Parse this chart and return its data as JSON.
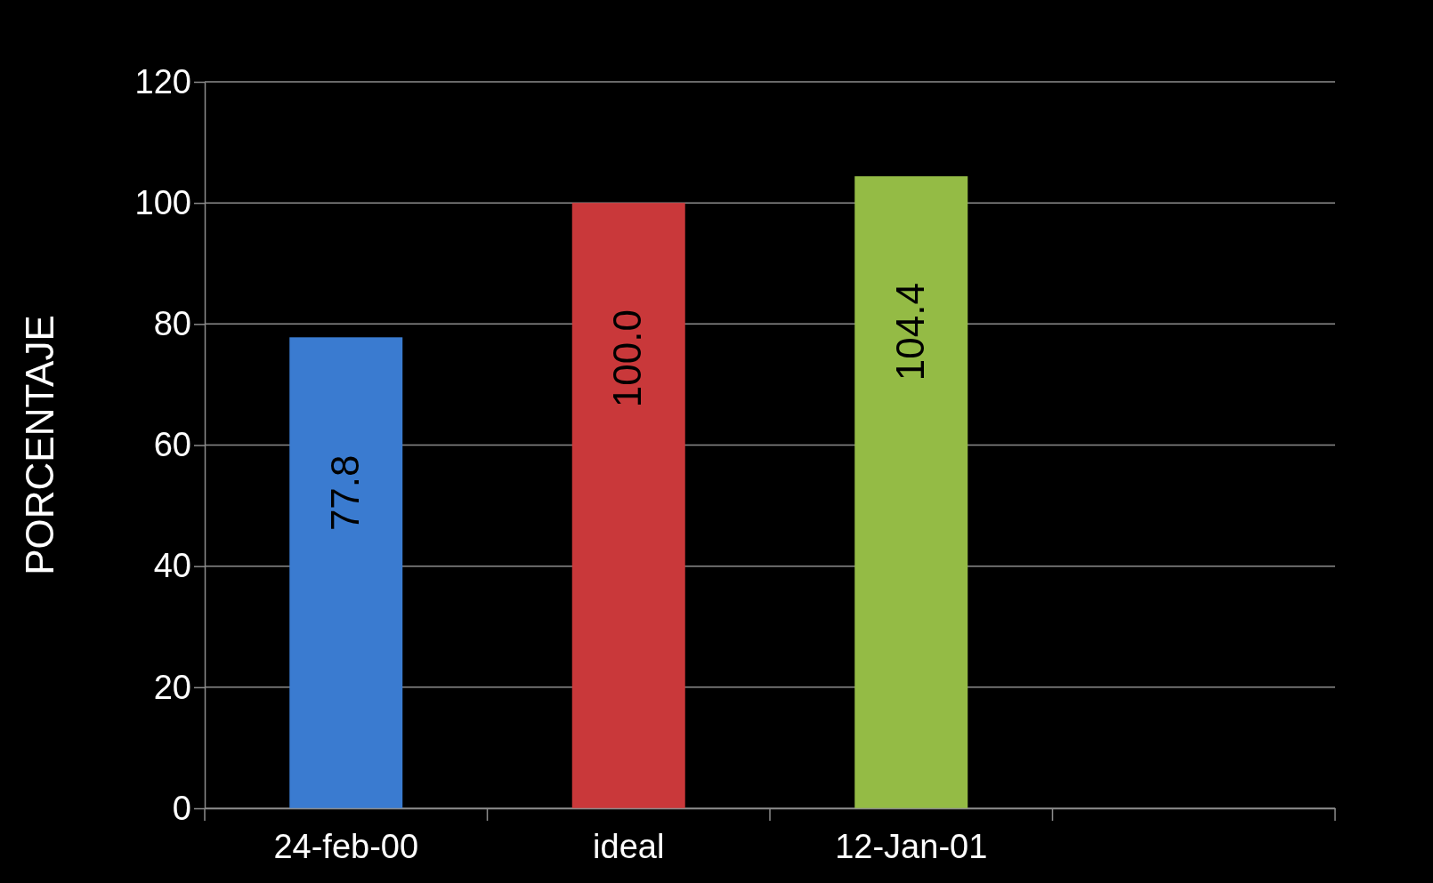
{
  "chart_data": {
    "type": "bar",
    "ylabel": "PORCENTAJE",
    "categories": [
      "24-feb-00",
      "ideal",
      "12-Jan-01",
      null
    ],
    "values": [
      77.8,
      100.0,
      104.4,
      null
    ],
    "colors": [
      "#3a7bd0",
      "#c9383a",
      "#94bb45",
      null
    ],
    "value_labels": [
      "77.8",
      "100.0",
      "104.4",
      null
    ],
    "ylim": [
      0,
      120
    ],
    "yticks": [
      0,
      20,
      40,
      60,
      80,
      100,
      120
    ],
    "grid": "y"
  }
}
